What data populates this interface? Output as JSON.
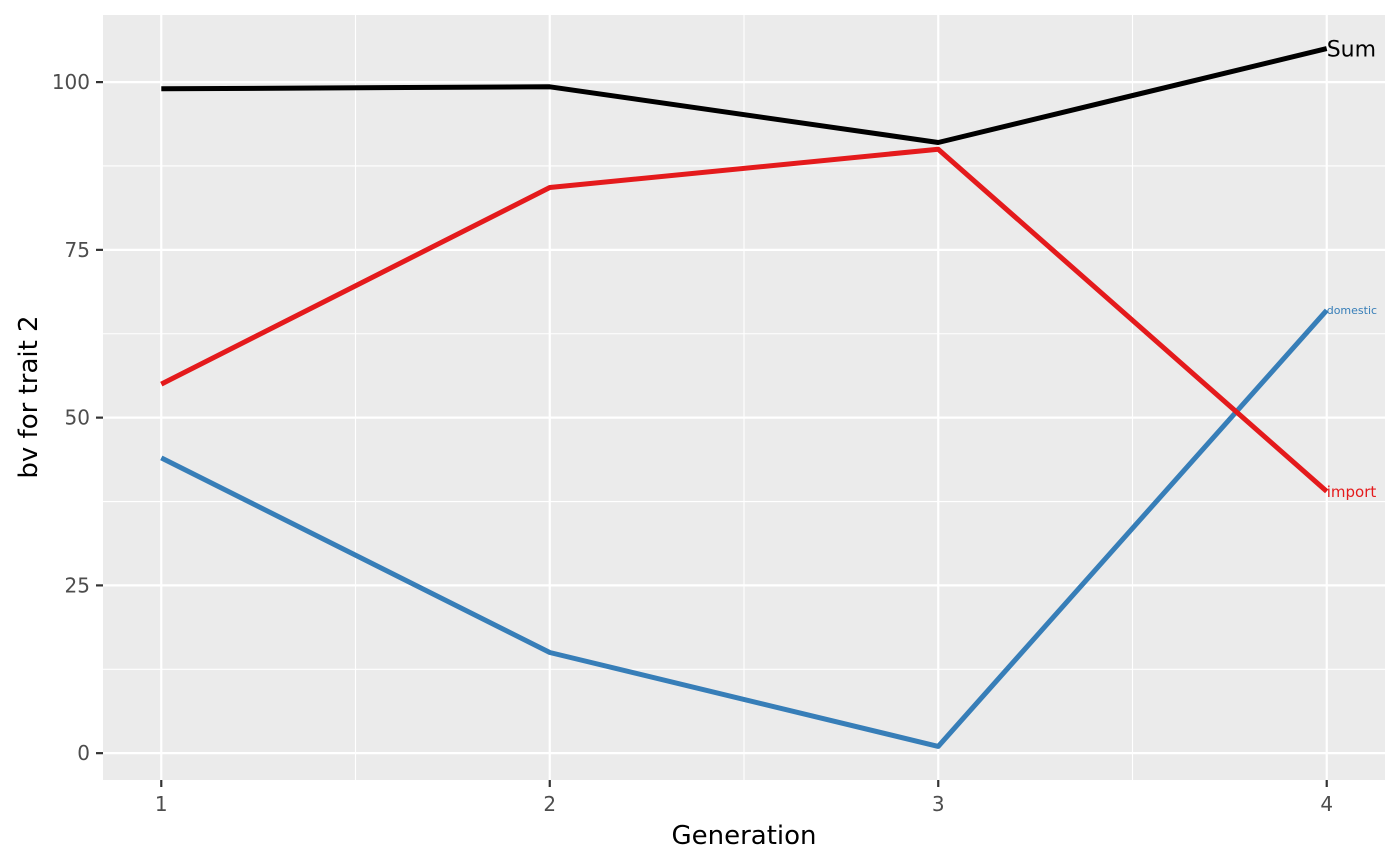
{
  "chart_data": {
    "type": "line",
    "xlabel": "Generation",
    "ylabel": "bv for trait 2",
    "x": [
      1,
      2,
      3,
      4
    ],
    "xlim": [
      0.85,
      4.15
    ],
    "ylim": [
      -4,
      110
    ],
    "x_ticks": [
      1,
      2,
      3,
      4
    ],
    "y_ticks": [
      0,
      25,
      50,
      75,
      100
    ],
    "grid": true,
    "legend": "none",
    "background": "#ebebeb",
    "series": [
      {
        "name": "Sum",
        "color": "#000000",
        "values": [
          99,
          99.3,
          91,
          105
        ]
      },
      {
        "name": "import",
        "color": "#e41a1c",
        "values": [
          55,
          84.3,
          90,
          39
        ]
      },
      {
        "name": "domestic",
        "color": "#377eb8",
        "values": [
          44,
          15,
          1,
          66
        ]
      }
    ]
  }
}
